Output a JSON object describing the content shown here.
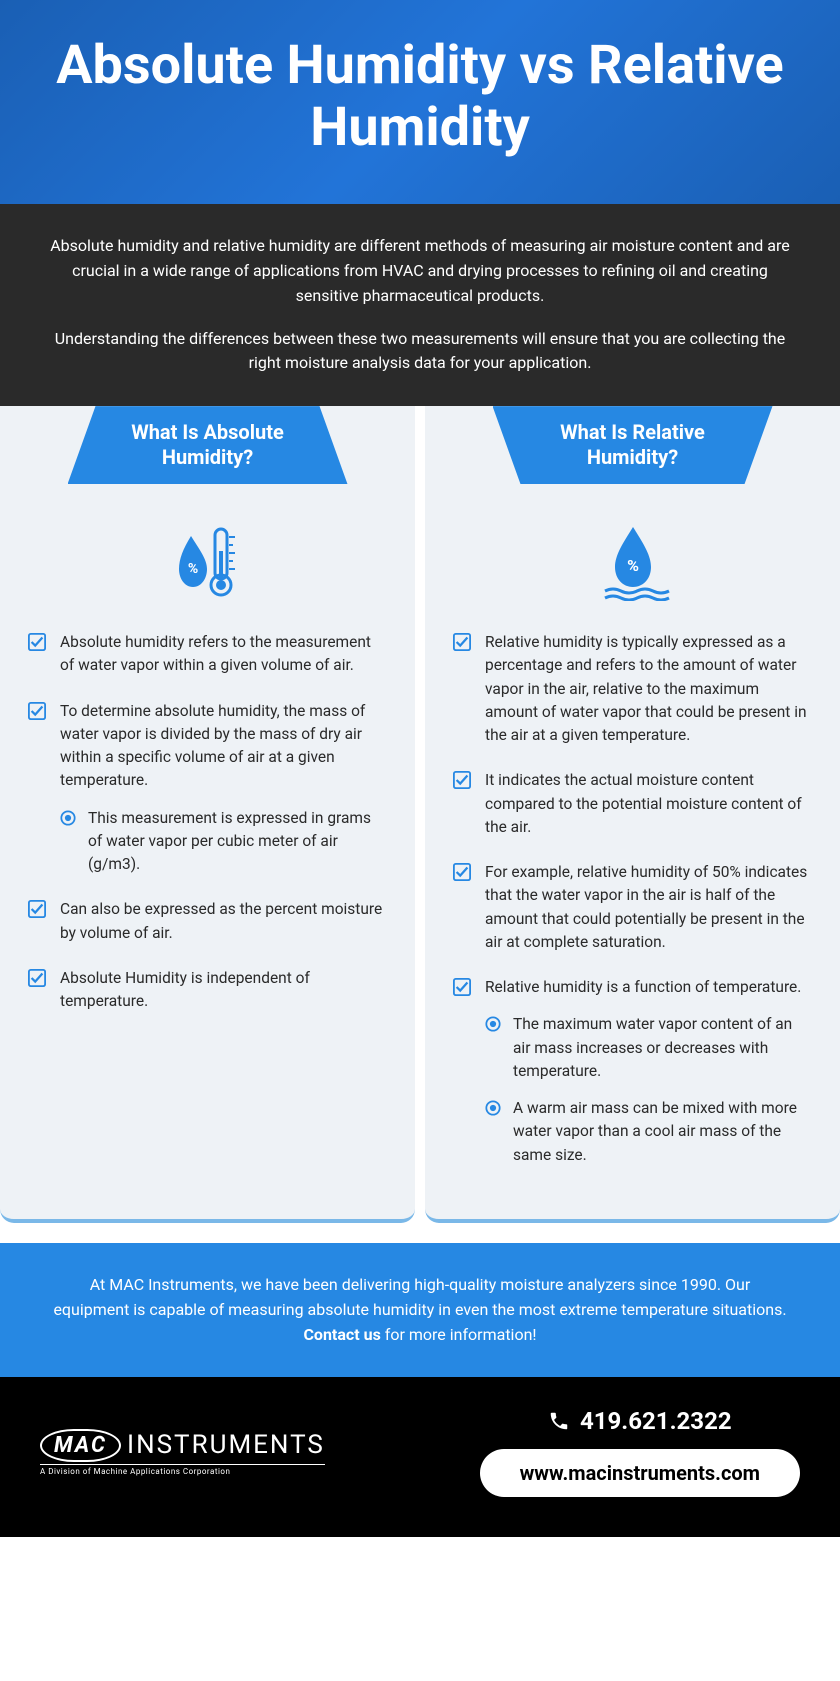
{
  "colors": {
    "hero_bg": "#1a5fb4",
    "intro_bg": "#2a2a2a",
    "col_bg": "#eef2f6",
    "accent": "#2688e3",
    "col_border": "#7ab8e8",
    "footer_bg": "#000000",
    "text_dark": "#2a2a2a",
    "white": "#ffffff"
  },
  "hero": {
    "title": "Absolute Humidity vs Relative Humidity"
  },
  "intro": {
    "p1": "Absolute humidity and relative humidity are different methods of measuring air moisture content and are crucial in a wide range of applications from HVAC and drying processes to refining oil and creating sensitive pharmaceutical products.",
    "p2": "Understanding the differences between these two measurements will ensure that you are collecting the right moisture analysis data for your application."
  },
  "left": {
    "heading": "What Is Absolute Humidity?",
    "icon": "thermometer-droplet-icon",
    "items": [
      {
        "text": "Absolute humidity refers to the measurement of water vapor within a given volume of air."
      },
      {
        "text": "To determine absolute humidity, the mass of water vapor is divided by the mass of dry air within a specific volume of air at a given temperature.",
        "sub": [
          "This measurement is expressed in grams of water vapor per cubic meter of air (g/m3)."
        ]
      },
      {
        "text": "Can also be expressed as the percent moisture by volume of air."
      },
      {
        "text": "Absolute Humidity is independent of temperature."
      }
    ]
  },
  "right": {
    "heading": "What Is Relative Humidity?",
    "icon": "droplet-waves-icon",
    "items": [
      {
        "text": "Relative humidity is typically expressed as a percentage and refers to the amount of water vapor in the air, relative to the maximum amount of water vapor that could be present in the air at a given temperature."
      },
      {
        "text": "It indicates the actual moisture content compared to the potential moisture content of the air."
      },
      {
        "text": "For example, relative humidity of 50% indicates that the water vapor in the air is half of the amount that could potentially be present in the air at complete saturation."
      },
      {
        "text": "Relative humidity is a function of temperature.",
        "sub": [
          "The maximum water vapor content of an air mass increases or decreases with temperature.",
          "A warm air mass can be mixed with more water vapor than a cool air mass of the same size."
        ]
      }
    ]
  },
  "cta": {
    "text_before": "At MAC Instruments, we have been delivering high-quality moisture analyzers since 1990. Our equipment is capable of measuring absolute humidity in even the most extreme temperature situations. ",
    "bold": "Contact us",
    "text_after": " for more information!"
  },
  "footer": {
    "logo_main": "INSTRUMENTS",
    "logo_mac": "MAC",
    "logo_sub": "A Division of Machine Applications Corporation",
    "phone": "419.621.2322",
    "url": "www.macinstruments.com"
  }
}
